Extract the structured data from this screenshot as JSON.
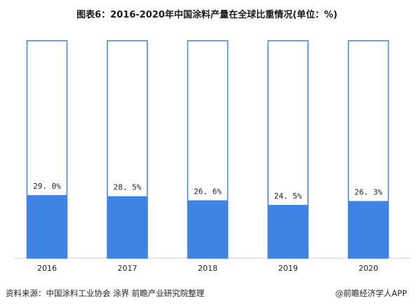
{
  "title": "图表6：2016-2020年中国涂料产量在全球比重情况(单位：%)",
  "source": "资料来源：中国涂料工业协会 涂界 前瞻产业研究院整理",
  "credit": "@前瞻经济学人APP",
  "colors": {
    "fill": "#3f84e5",
    "outline": "#3f84e5",
    "background": "#ffffff"
  },
  "chart_data": {
    "type": "bar",
    "stacked": true,
    "categories": [
      "2016",
      "2017",
      "2018",
      "2019",
      "2020"
    ],
    "values": [
      29.0,
      28.5,
      26.6,
      24.5,
      26.3
    ],
    "value_labels": [
      "29. 0%",
      "28. 5%",
      "26. 6%",
      "24. 5%",
      "26. 3%"
    ],
    "ylim": [
      0,
      100
    ],
    "grid": false,
    "legend": "none"
  }
}
